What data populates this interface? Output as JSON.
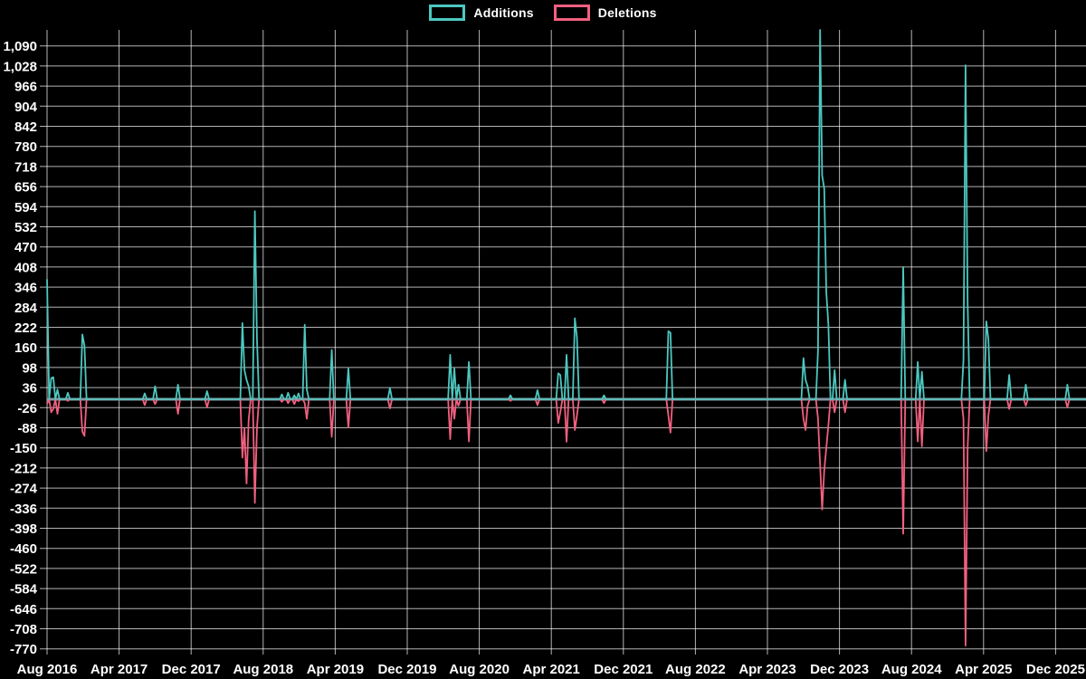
{
  "legend": {
    "additions_label": "Additions",
    "deletions_label": "Deletions"
  },
  "colors": {
    "background": "#000000",
    "text": "#ffffff",
    "grid": "#ffffff",
    "grid_opacity": 0.7,
    "zero_line": "#8298a3",
    "additions": "#4cc8c0",
    "deletions": "#f2607f"
  },
  "chart_data": {
    "type": "line",
    "title": "",
    "xlabel": "",
    "ylabel": "",
    "legend_position": "top-center",
    "grid": true,
    "x_axis": {
      "tick_labels": [
        "Aug 2016",
        "Apr 2017",
        "Dec 2017",
        "Aug 2018",
        "Apr 2019",
        "Dec 2019",
        "Aug 2020",
        "Apr 2021",
        "Dec 2021",
        "Aug 2022",
        "Apr 2023",
        "Dec 2023",
        "Aug 2024",
        "Apr 2025",
        "Dec 2025"
      ],
      "months_per_tick": 8,
      "start": "Aug 2016",
      "end": "Dec 2025"
    },
    "y_axis": {
      "min": -770,
      "max": 1090,
      "tick_step": 62,
      "baseline": 0
    },
    "series": [
      {
        "name": "Additions",
        "key": "add",
        "color": "#4cc8c0"
      },
      {
        "name": "Deletions",
        "key": "del",
        "color": "#f2607f"
      }
    ],
    "total_weeks": 500,
    "weekly_spikes_comment": "Each entry: [week index since Aug 2016, additions, deletions]; all other weeks are 0/0.",
    "weekly_spikes": [
      [
        0,
        370,
        -15
      ],
      [
        2,
        65,
        -40
      ],
      [
        3,
        68,
        -30
      ],
      [
        5,
        30,
        -45
      ],
      [
        10,
        20,
        -5
      ],
      [
        17,
        200,
        -100
      ],
      [
        18,
        165,
        -113
      ],
      [
        47,
        18,
        -18
      ],
      [
        52,
        40,
        -15
      ],
      [
        63,
        45,
        -45
      ],
      [
        77,
        25,
        -25
      ],
      [
        94,
        235,
        -180
      ],
      [
        95,
        90,
        -90
      ],
      [
        96,
        60,
        -260
      ],
      [
        97,
        40,
        -65
      ],
      [
        100,
        580,
        -320
      ],
      [
        101,
        190,
        -90
      ],
      [
        113,
        15,
        -8
      ],
      [
        116,
        20,
        -12
      ],
      [
        119,
        12,
        -15
      ],
      [
        121,
        18,
        -6
      ],
      [
        124,
        230,
        -12
      ],
      [
        125,
        30,
        -60
      ],
      [
        137,
        152,
        -116
      ],
      [
        145,
        95,
        -87
      ],
      [
        165,
        35,
        -28
      ],
      [
        194,
        137,
        -123
      ],
      [
        196,
        95,
        -60
      ],
      [
        198,
        45,
        -20
      ],
      [
        203,
        115,
        -130
      ],
      [
        223,
        12,
        -5
      ],
      [
        236,
        28,
        -18
      ],
      [
        246,
        80,
        -73
      ],
      [
        247,
        75,
        -40
      ],
      [
        250,
        137,
        -131
      ],
      [
        254,
        250,
        -95
      ],
      [
        255,
        190,
        -50
      ],
      [
        268,
        12,
        -12
      ],
      [
        299,
        210,
        -50
      ],
      [
        300,
        205,
        -103
      ],
      [
        364,
        127,
        -60
      ],
      [
        365,
        60,
        -95
      ],
      [
        366,
        40,
        -20
      ],
      [
        371,
        150,
        -60
      ],
      [
        372,
        1140,
        -200
      ],
      [
        373,
        690,
        -340
      ],
      [
        374,
        650,
        -220
      ],
      [
        375,
        330,
        -150
      ],
      [
        376,
        230,
        -80
      ],
      [
        379,
        90,
        -40
      ],
      [
        384,
        60,
        -40
      ],
      [
        412,
        408,
        -415
      ],
      [
        419,
        115,
        -130
      ],
      [
        421,
        85,
        -145
      ],
      [
        441,
        120,
        -60
      ],
      [
        442,
        1030,
        -760
      ],
      [
        443,
        300,
        -150
      ],
      [
        452,
        240,
        -160
      ],
      [
        453,
        185,
        -50
      ],
      [
        463,
        75,
        -30
      ],
      [
        471,
        45,
        -20
      ],
      [
        491,
        45,
        -25
      ]
    ]
  }
}
